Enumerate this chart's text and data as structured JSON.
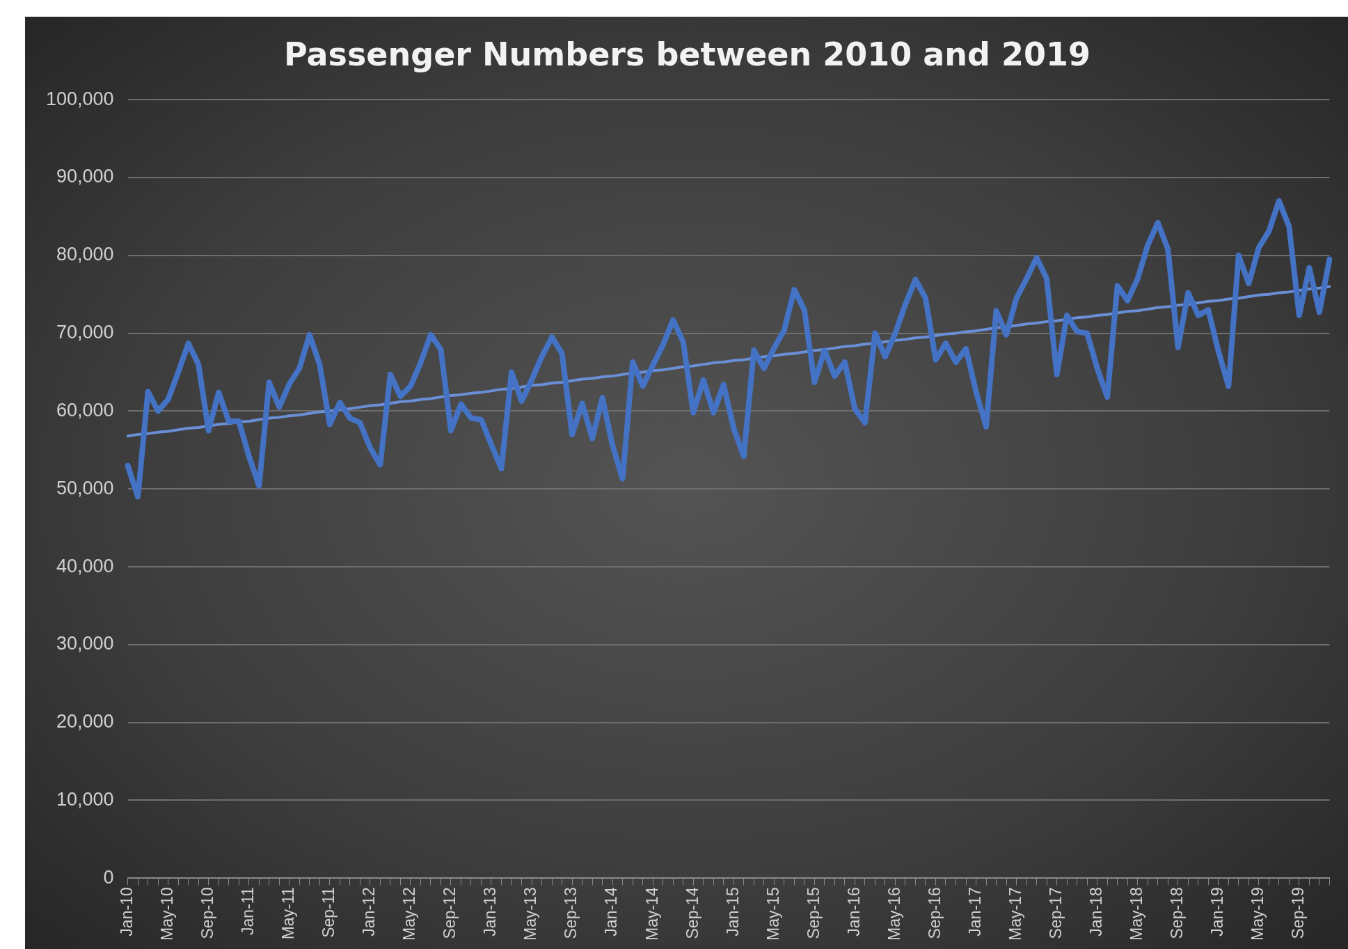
{
  "chart_data": {
    "type": "line",
    "title": "Passenger Numbers between 2010 and 2019",
    "categories": [
      "Jan-10",
      null,
      null,
      null,
      "May-10",
      null,
      null,
      null,
      "Sep-10",
      null,
      null,
      null,
      "Jan-11",
      null,
      null,
      null,
      "May-11",
      null,
      null,
      null,
      "Sep-11",
      null,
      null,
      null,
      "Jan-12",
      null,
      null,
      null,
      "May-12",
      null,
      null,
      null,
      "Sep-12",
      null,
      null,
      null,
      "Jan-13",
      null,
      null,
      null,
      "May-13",
      null,
      null,
      null,
      "Sep-13",
      null,
      null,
      null,
      "Jan-14",
      null,
      null,
      null,
      "May-14",
      null,
      null,
      null,
      "Sep-14",
      null,
      null,
      null,
      "Jan-15",
      null,
      null,
      null,
      "May-15",
      null,
      null,
      null,
      "Sep-15",
      null,
      null,
      null,
      "Jan-16",
      null,
      null,
      null,
      "May-16",
      null,
      null,
      null,
      "Sep-16",
      null,
      null,
      null,
      "Jan-17",
      null,
      null,
      null,
      "May-17",
      null,
      null,
      null,
      "Sep-17",
      null,
      null,
      null,
      "Jan-18",
      null,
      null,
      null,
      "May-18",
      null,
      null,
      null,
      "Sep-18",
      null,
      null,
      null,
      "Jan-19",
      null,
      null,
      null,
      "May-19",
      null,
      null,
      null,
      "Sep-19",
      null,
      null,
      null
    ],
    "series": [
      {
        "color": "#4472c4",
        "values": [
          53000,
          49000,
          62500,
          60000,
          61500,
          65000,
          68700,
          66000,
          57500,
          62400,
          58700,
          58700,
          54200,
          50400,
          63700,
          60500,
          63500,
          65500,
          69800,
          66000,
          58300,
          61100,
          59100,
          58500,
          55300,
          53100,
          64700,
          61900,
          63200,
          66200,
          69800,
          67900,
          57500,
          60900,
          59100,
          58900,
          55700,
          52600,
          65000,
          61300,
          64000,
          67000,
          69500,
          67400,
          57000,
          61000,
          56500,
          61700,
          55600,
          51300,
          66300,
          63200,
          65900,
          68500,
          71700,
          68900,
          59800,
          64000,
          59800,
          63400,
          57800,
          54200,
          67800,
          65500,
          68100,
          70400,
          75600,
          73000,
          63700,
          67800,
          64500,
          66300,
          60300,
          58500,
          70000,
          67000,
          70000,
          73700,
          76900,
          74500,
          66600,
          68700,
          66300,
          68000,
          62500,
          58000,
          72900,
          69800,
          74500,
          77000,
          79700,
          77000,
          64700,
          72300,
          70200,
          70000,
          65500,
          61800,
          76100,
          74200,
          77000,
          81300,
          84200,
          80800,
          68200,
          75200,
          72300,
          73000,
          67700,
          63200,
          80000,
          76400,
          81000,
          83100,
          87000,
          83700,
          72300,
          78400,
          72700,
          79500
        ]
      },
      {
        "color": "#6a8fd6",
        "values": [
          56800,
          57000,
          57100,
          57300,
          57400,
          57600,
          57800,
          57900,
          58100,
          58300,
          58400,
          58600,
          58700,
          58900,
          59100,
          59200,
          59400,
          59500,
          59700,
          59900,
          60000,
          60200,
          60300,
          60500,
          60700,
          60800,
          61000,
          61200,
          61300,
          61500,
          61600,
          61800,
          62000,
          62100,
          62300,
          62400,
          62600,
          62800,
          62900,
          63100,
          63300,
          63400,
          63600,
          63700,
          63900,
          64100,
          64200,
          64400,
          64500,
          64700,
          64900,
          65000,
          65200,
          65300,
          65500,
          65700,
          65800,
          66000,
          66200,
          66300,
          66500,
          66600,
          66800,
          67000,
          67100,
          67300,
          67400,
          67600,
          67800,
          67900,
          68100,
          68300,
          68400,
          68600,
          68700,
          68900,
          69100,
          69200,
          69400,
          69500,
          69700,
          69900,
          70000,
          70200,
          70300,
          70500,
          70700,
          70800,
          71000,
          71200,
          71300,
          71500,
          71600,
          71800,
          72000,
          72100,
          72300,
          72400,
          72600,
          72800,
          72900,
          73100,
          73300,
          73400,
          73600,
          73700,
          73900,
          74100,
          74200,
          74400,
          74500,
          74700,
          74900,
          75000,
          75200,
          75300,
          75500,
          75700,
          75800,
          76000
        ]
      }
    ],
    "ylim": [
      0,
      100000
    ],
    "yticks": [
      0,
      {
        "value": 10000,
        "label": "10,000"
      },
      {
        "value": 20000,
        "label": "20,000"
      },
      {
        "value": 30000,
        "label": "30,000"
      },
      {
        "value": 40000,
        "label": "40,000"
      },
      {
        "value": 50000,
        "label": "50,000"
      },
      {
        "value": 60000,
        "label": "60,000"
      },
      {
        "value": 70000,
        "label": "70,000"
      },
      {
        "value": 80000,
        "label": "80,000"
      },
      {
        "value": 90000,
        "label": "90,000"
      },
      {
        "value": 100000,
        "label": "100,000"
      }
    ],
    "grid": "y",
    "legend": false,
    "marker": "none",
    "line_style": "solid"
  }
}
